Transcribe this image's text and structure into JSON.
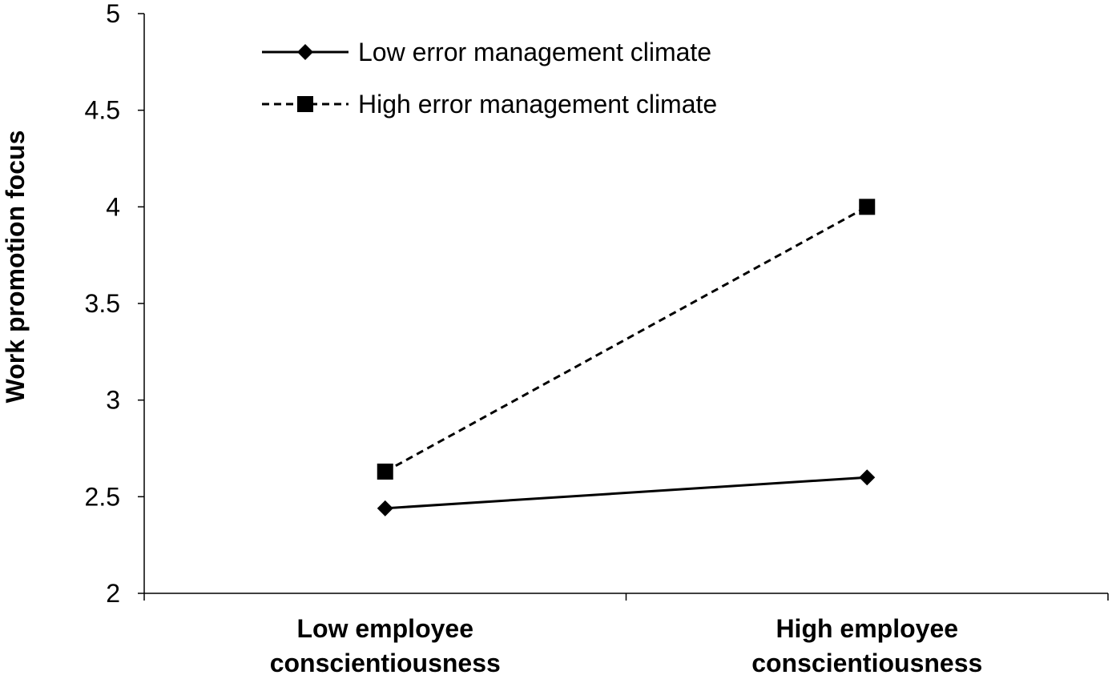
{
  "chart_data": {
    "type": "line",
    "title": "",
    "xlabel": "",
    "ylabel": "Work promotion focus",
    "ylim": [
      2,
      5
    ],
    "yticks": [
      "2",
      "2.5",
      "3",
      "3.5",
      "4",
      "4.5",
      "5"
    ],
    "categories": [
      [
        "Low employee",
        "conscientiousness"
      ],
      [
        "High employee",
        "conscientiousness"
      ]
    ],
    "series": [
      {
        "name": "Low error management climate",
        "values": [
          2.44,
          2.6
        ],
        "marker": "diamond",
        "line_style": "solid",
        "color": "#000000"
      },
      {
        "name": "High error management climate",
        "values": [
          2.63,
          4.0
        ],
        "marker": "square",
        "line_style": "dashed",
        "color": "#000000"
      }
    ],
    "grid": false,
    "legend_position": "top-left"
  }
}
